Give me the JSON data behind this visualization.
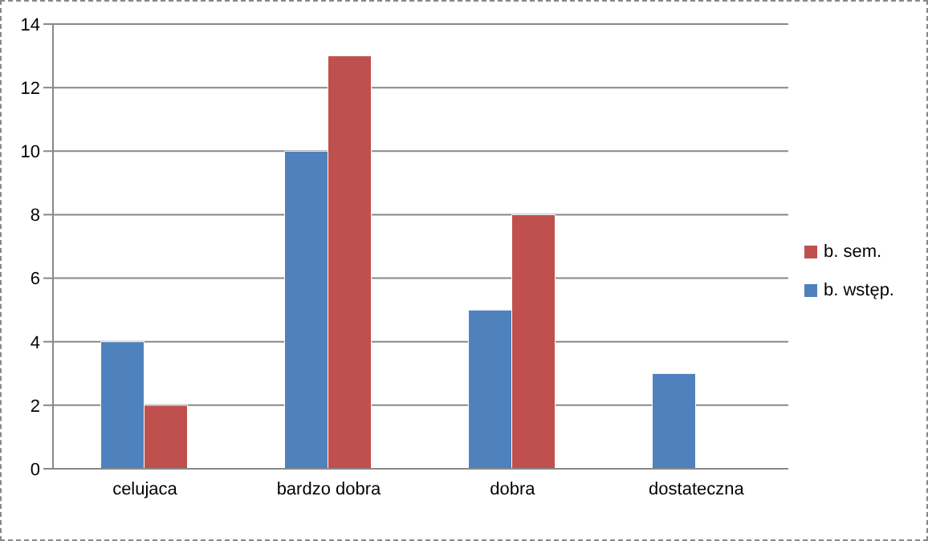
{
  "chart_data": {
    "type": "bar",
    "categories": [
      "celujaca",
      "bardzo dobra",
      "dobra",
      "dostateczna"
    ],
    "series": [
      {
        "name": "b. wstęp.",
        "color": "#4f81bd",
        "values": [
          4,
          10,
          5,
          3
        ]
      },
      {
        "name": "b. sem.",
        "color": "#c0504d",
        "values": [
          2,
          13,
          8,
          0
        ]
      }
    ],
    "ylim": [
      0,
      14
    ],
    "yticks": [
      0,
      2,
      4,
      6,
      8,
      10,
      12,
      14
    ],
    "grid": "y",
    "legend": "right"
  }
}
